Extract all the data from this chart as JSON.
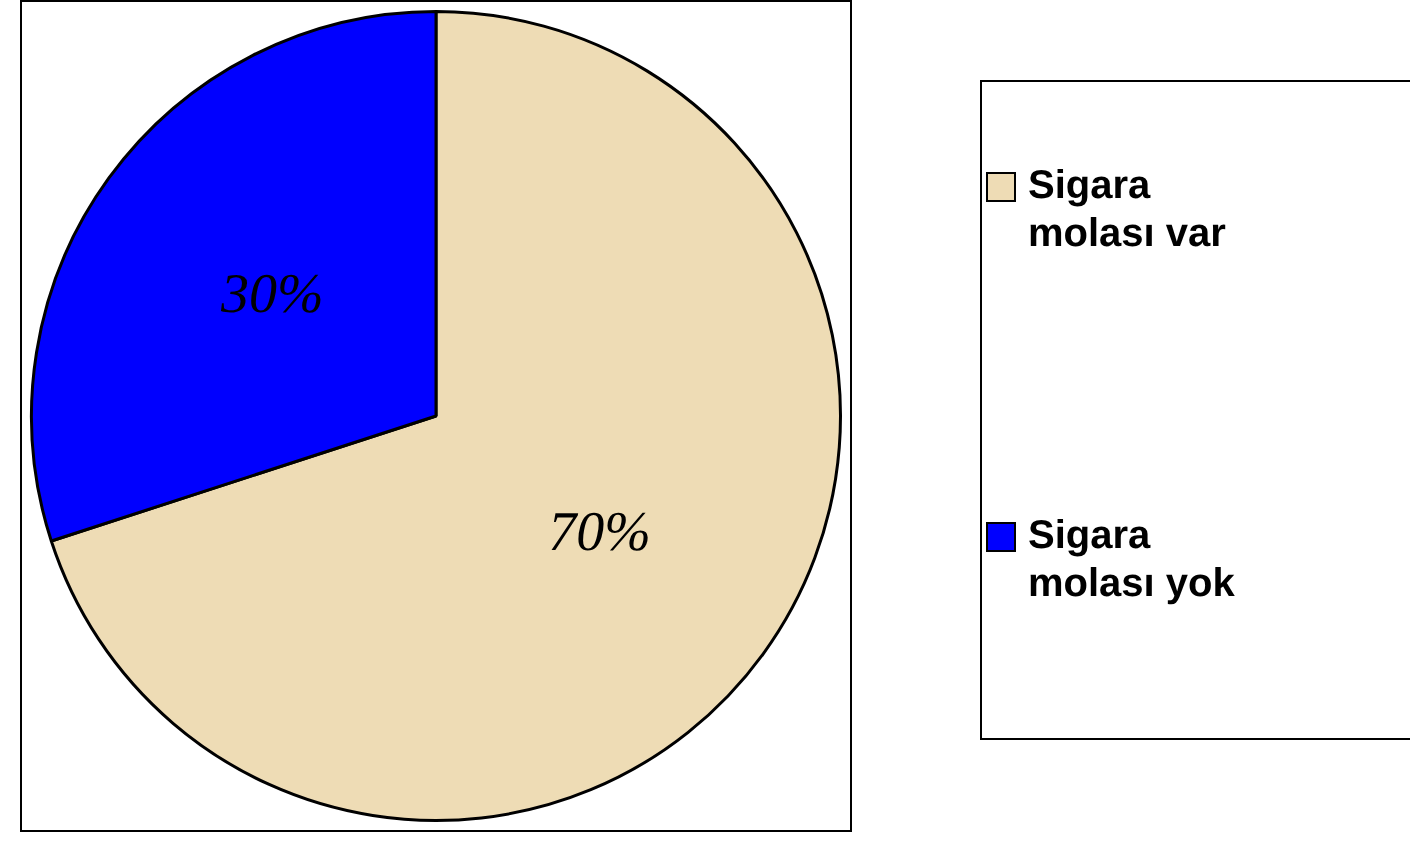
{
  "chart_data": {
    "type": "pie",
    "categories": [
      "Sigara molası var",
      "Sigara molası yok"
    ],
    "values": [
      70,
      30
    ],
    "colors": [
      "#eedcb5",
      "#0000ff"
    ],
    "value_labels": [
      "70%",
      "30%"
    ],
    "legend": "right"
  }
}
